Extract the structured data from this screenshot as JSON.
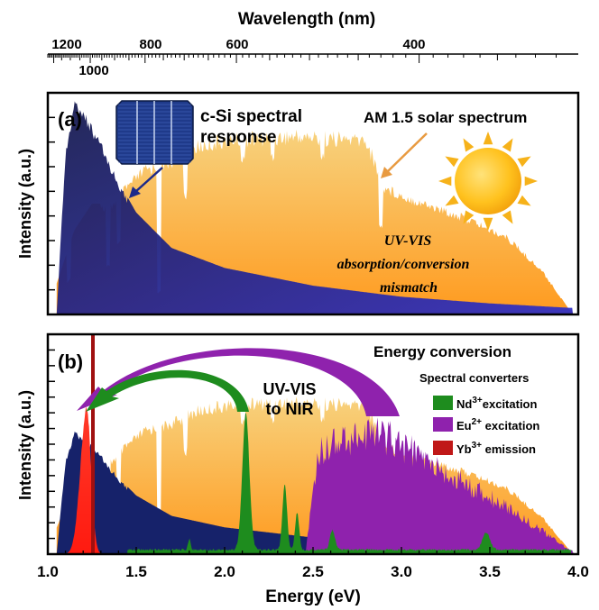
{
  "top_axis": {
    "title": "Wavelength  (nm)",
    "ticks": [
      {
        "label": "1200",
        "value": 1200
      },
      {
        "label": "1000",
        "value": 1000
      },
      {
        "label": "800",
        "value": 800
      },
      {
        "label": "600",
        "value": 600
      },
      {
        "label": "400",
        "value": 400
      }
    ]
  },
  "panel_a": {
    "label": "(a)",
    "ylabel": "Intensity (a.u.)",
    "csi_label_line1": "c-Si spectral",
    "csi_label_line2": "response",
    "am15_label": "AM 1.5 solar spectrum",
    "mismatch_line1": "UV-VIS",
    "mismatch_line2": "absorption/conversion",
    "mismatch_line3": "mismatch"
  },
  "panel_b": {
    "label": "(b)",
    "ylabel": "Intensity (a.u.)",
    "title": "Energy conversion",
    "conversion_line1": "UV-VIS",
    "conversion_line2": "to NIR",
    "legend_title": "Spectral converters",
    "legend": [
      {
        "ion": "Nd",
        "charge": "3+",
        "suffix": "excitation",
        "color": "#1e8c1e"
      },
      {
        "ion": "Eu",
        "charge": "2+",
        "suffix": " excitation",
        "color": "#8f22ad"
      },
      {
        "ion": "Yb",
        "charge": "3+",
        "suffix": " emission",
        "color": "#e8281a"
      }
    ]
  },
  "bottom_axis": {
    "title": "Energy (eV)",
    "ticks": [
      "1.0",
      "1.5",
      "2.0",
      "2.5",
      "3.0",
      "3.5",
      "4.0"
    ]
  },
  "colors": {
    "solar_top": "#f7d27e",
    "solar_bottom": "#ff9a1e",
    "csi_top": "#13174a",
    "csi_bottom": "#2f2fc8",
    "nd": "#1e8c1e",
    "eu": "#8f22ad",
    "yb": "#e8281a",
    "yb_line": "#a01010"
  },
  "chart_data": {
    "type": "area",
    "xlabel": "Energy (eV)",
    "xlim": [
      1.0,
      4.0
    ],
    "x2label": "Wavelength  (nm)",
    "ylabel": "Intensity (a.u.)",
    "panels": [
      {
        "panel": "(a)",
        "series": [
          {
            "name": "AM 1.5 solar spectrum",
            "x": [
              1.05,
              1.15,
              1.25,
              1.35,
              1.45,
              1.55,
              1.7,
              1.85,
              2.0,
              2.2,
              2.4,
              2.6,
              2.8,
              2.9,
              3.0,
              3.2,
              3.4,
              3.6,
              3.8,
              3.95
            ],
            "y": [
              0.14,
              0.38,
              0.5,
              0.5,
              0.6,
              0.68,
              0.72,
              0.79,
              0.82,
              0.83,
              0.84,
              0.83,
              0.82,
              0.6,
              0.56,
              0.5,
              0.44,
              0.36,
              0.2,
              0.02
            ]
          },
          {
            "name": "c-Si spectral response",
            "x": [
              1.05,
              1.1,
              1.15,
              1.2,
              1.3,
              1.4,
              1.5,
              1.7,
              2.0,
              2.5,
              3.0,
              3.5,
              3.95
            ],
            "y": [
              0.0,
              0.75,
              0.97,
              0.93,
              0.78,
              0.6,
              0.46,
              0.3,
              0.21,
              0.13,
              0.08,
              0.05,
              0.03
            ]
          }
        ]
      },
      {
        "panel": "(b)",
        "series": [
          {
            "name": "Nd3+ excitation",
            "peaks": [
              {
                "x": 1.8,
                "y": 0.05
              },
              {
                "x": 2.12,
                "y": 0.62
              },
              {
                "x": 2.34,
                "y": 0.3
              },
              {
                "x": 2.41,
                "y": 0.17
              },
              {
                "x": 2.61,
                "y": 0.09
              },
              {
                "x": 3.48,
                "y": 0.08
              }
            ]
          },
          {
            "name": "Eu2+ excitation",
            "x": [
              2.46,
              2.52,
              2.58,
              2.7,
              2.85,
              3.0,
              3.2,
              3.4,
              3.6,
              3.8,
              3.97
            ],
            "y": [
              0.02,
              0.5,
              0.58,
              0.62,
              0.65,
              0.58,
              0.45,
              0.35,
              0.25,
              0.12,
              0.01
            ]
          },
          {
            "name": "Yb3+ emission",
            "peaks": [
              {
                "x": 1.22,
                "y": 0.64
              }
            ]
          }
        ]
      }
    ]
  }
}
